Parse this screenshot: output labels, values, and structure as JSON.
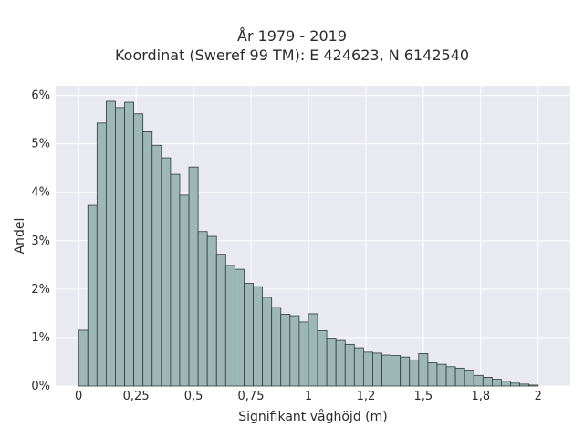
{
  "chart_data": {
    "type": "bar",
    "title": "År 1979 - 2019",
    "subtitle": "Koordinat (Sweref 99 TM): E 424623, N 6142540",
    "xlabel": "Signifikant våghöjd (m)",
    "ylabel": "Andel",
    "xlim": [
      -0.1,
      2.14
    ],
    "ylim": [
      0,
      6.2
    ],
    "x_ticks": [
      {
        "value": 0,
        "label": "0"
      },
      {
        "value": 0.25,
        "label": "0,25"
      },
      {
        "value": 0.5,
        "label": "0,5"
      },
      {
        "value": 0.75,
        "label": "0,75"
      },
      {
        "value": 1,
        "label": "1"
      },
      {
        "value": 1.25,
        "label": "1,2"
      },
      {
        "value": 1.5,
        "label": "1,5"
      },
      {
        "value": 1.75,
        "label": "1,8"
      },
      {
        "value": 2,
        "label": "2"
      }
    ],
    "y_ticks": [
      {
        "value": 0,
        "label": "0%"
      },
      {
        "value": 1,
        "label": "1%"
      },
      {
        "value": 2,
        "label": "2%"
      },
      {
        "value": 3,
        "label": "3%"
      },
      {
        "value": 4,
        "label": "4%"
      },
      {
        "value": 5,
        "label": "5%"
      },
      {
        "value": 6,
        "label": "6%"
      }
    ],
    "bin_start": 0,
    "bin_width": 0.04,
    "values": [
      1.15,
      3.73,
      5.43,
      5.88,
      5.75,
      5.86,
      5.62,
      5.25,
      4.97,
      4.71,
      4.37,
      3.94,
      4.52,
      3.19,
      3.09,
      2.72,
      2.49,
      2.41,
      2.12,
      2.05,
      1.83,
      1.62,
      1.48,
      1.45,
      1.32,
      1.49,
      1.14,
      0.99,
      0.94,
      0.86,
      0.79,
      0.7,
      0.68,
      0.64,
      0.63,
      0.6,
      0.54,
      0.67,
      0.48,
      0.45,
      0.4,
      0.37,
      0.31,
      0.22,
      0.18,
      0.14,
      0.1,
      0.06,
      0.04,
      0.02
    ],
    "grid": true,
    "colors": {
      "bar_fill": "#9db7b6",
      "bar_edge": "#2f3b3a",
      "plot_bg": "#e9e9f1",
      "grid": "#ffffff"
    }
  }
}
